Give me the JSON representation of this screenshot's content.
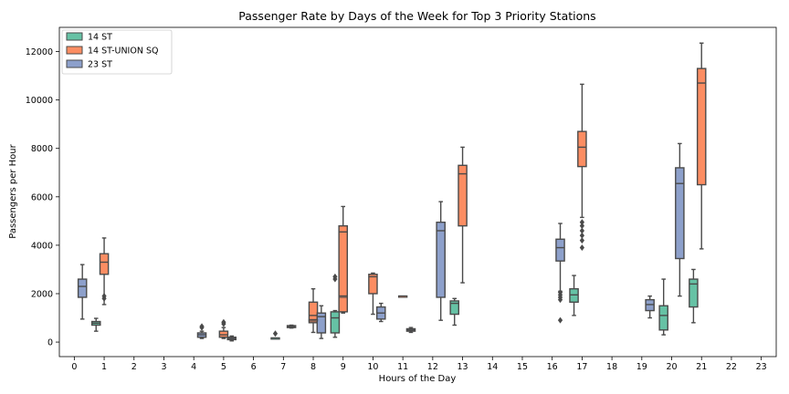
{
  "chart_data": {
    "type": "box",
    "title": "Passenger Rate by Days of the Week for Top 3 Priority Stations",
    "xlabel": "Hours of the Day",
    "ylabel": "Passengers per Hour",
    "categories": [
      "0",
      "1",
      "2",
      "3",
      "4",
      "5",
      "6",
      "7",
      "8",
      "9",
      "10",
      "11",
      "12",
      "13",
      "14",
      "15",
      "16",
      "17",
      "18",
      "19",
      "20",
      "21",
      "22",
      "23"
    ],
    "ylim": [
      -600,
      13000
    ],
    "yticks": [
      0,
      2000,
      4000,
      6000,
      8000,
      10000,
      12000
    ],
    "legend_position": "top-left",
    "series": [
      {
        "name": "14 ST",
        "color": "#66c2a5",
        "boxes": [
          {
            "x": "1",
            "whislo": 450,
            "q1": 700,
            "med": 780,
            "q3": 850,
            "whishi": 980,
            "fliers": []
          },
          {
            "x": "9",
            "whislo": 200,
            "q1": 380,
            "med": 1000,
            "q3": 1250,
            "whishi": 1300,
            "fliers": [
              2600,
              2700
            ]
          },
          {
            "x": "13",
            "whislo": 700,
            "q1": 1150,
            "med": 1600,
            "q3": 1700,
            "whishi": 1800,
            "fliers": []
          },
          {
            "x": "17",
            "whislo": 1100,
            "q1": 1650,
            "med": 1950,
            "q3": 2200,
            "whishi": 2750,
            "fliers": []
          },
          {
            "x": "20",
            "whislo": 300,
            "q1": 500,
            "med": 1100,
            "q3": 1500,
            "whishi": 2600,
            "fliers": []
          },
          {
            "x": "21",
            "whislo": 800,
            "q1": 1450,
            "med": 2400,
            "q3": 2600,
            "whishi": 3000,
            "fliers": []
          }
        ]
      },
      {
        "name": "14 ST-UNION SQ",
        "color": "#fc8d62",
        "boxes": [
          {
            "x": "1",
            "whislo": 1550,
            "q1": 2800,
            "med": 3300,
            "q3": 3650,
            "whishi": 4300,
            "fliers": [
              1800,
              1900
            ]
          },
          {
            "x": "5",
            "whislo": 150,
            "q1": 200,
            "med": 300,
            "q3": 450,
            "whishi": 600,
            "fliers": [
              750,
              820
            ]
          },
          {
            "x": "8",
            "whislo": 400,
            "q1": 800,
            "med": 1100,
            "q3": 1650,
            "whishi": 2200,
            "fliers": []
          },
          {
            "x": "9",
            "whislo": 1200,
            "q1": 1250,
            "med": 4550,
            "q3": 4800,
            "whishi": 5600,
            "fliers": []
          },
          {
            "x": "10",
            "whislo": 1150,
            "q1": 2000,
            "med": 2700,
            "q3": 2800,
            "whishi": 2850,
            "fliers": []
          },
          {
            "x": "13",
            "whislo": 2450,
            "q1": 4800,
            "med": 6950,
            "q3": 7300,
            "whishi": 8050,
            "fliers": []
          },
          {
            "x": "17",
            "whislo": 5150,
            "q1": 7250,
            "med": 8050,
            "q3": 8700,
            "whishi": 10650,
            "fliers": [
              3900,
              4200,
              4400,
              4600,
              4800,
              4950
            ]
          },
          {
            "x": "21",
            "whislo": 3850,
            "q1": 6500,
            "med": 10700,
            "q3": 11300,
            "whishi": 12350,
            "fliers": []
          }
        ]
      },
      {
        "name": "23 ST",
        "color": "#8da0cb",
        "boxes": [
          {
            "x": "0",
            "whislo": 950,
            "q1": 1850,
            "med": 2300,
            "q3": 2600,
            "whishi": 3200,
            "fliers": []
          },
          {
            "x": "4",
            "whislo": 150,
            "q1": 200,
            "med": 300,
            "q3": 380,
            "whishi": 450,
            "fliers": [
              600,
              650
            ]
          },
          {
            "x": "5",
            "whislo": 50,
            "q1": 100,
            "med": 150,
            "q3": 200,
            "whishi": 250,
            "fliers": []
          },
          {
            "x": "7",
            "whislo": 580,
            "q1": 600,
            "med": 650,
            "q3": 680,
            "whishi": 700,
            "fliers": []
          },
          {
            "x": "8",
            "whislo": 150,
            "q1": 380,
            "med": 1050,
            "q3": 1200,
            "whishi": 1500,
            "fliers": []
          },
          {
            "x": "10",
            "whislo": 850,
            "q1": 950,
            "med": 1200,
            "q3": 1450,
            "whishi": 1600,
            "fliers": []
          },
          {
            "x": "11",
            "whislo": 400,
            "q1": 450,
            "med": 500,
            "q3": 550,
            "whishi": 600,
            "fliers": []
          },
          {
            "x": "12",
            "whislo": 900,
            "q1": 1850,
            "med": 4600,
            "q3": 4950,
            "whishi": 5800,
            "fliers": []
          },
          {
            "x": "16",
            "whislo": 2100,
            "q1": 3350,
            "med": 3900,
            "q3": 4250,
            "whishi": 4900,
            "fliers": [
              900,
              1750,
              1850,
              1950,
              2050
            ]
          },
          {
            "x": "19",
            "whislo": 1000,
            "q1": 1300,
            "med": 1550,
            "q3": 1750,
            "whishi": 1900,
            "fliers": []
          },
          {
            "x": "20",
            "whislo": 1900,
            "q1": 3450,
            "med": 6550,
            "q3": 7200,
            "whishi": 8200,
            "fliers": []
          }
        ]
      }
    ],
    "extra_marks": [
      {
        "series": "14 ST",
        "x": "7",
        "kind": "stub",
        "y": 150
      },
      {
        "series": "14 ST",
        "x": "7",
        "kind": "flier",
        "y": 350
      },
      {
        "series": "14 ST-UNION SQ",
        "x": "8",
        "kind": "flat",
        "y": 900
      },
      {
        "series": "14 ST-UNION SQ",
        "x": "9",
        "kind": "flat",
        "y": 1880
      },
      {
        "series": "14 ST-UNION SQ",
        "x": "11",
        "kind": "flat",
        "y": 1880
      }
    ]
  }
}
